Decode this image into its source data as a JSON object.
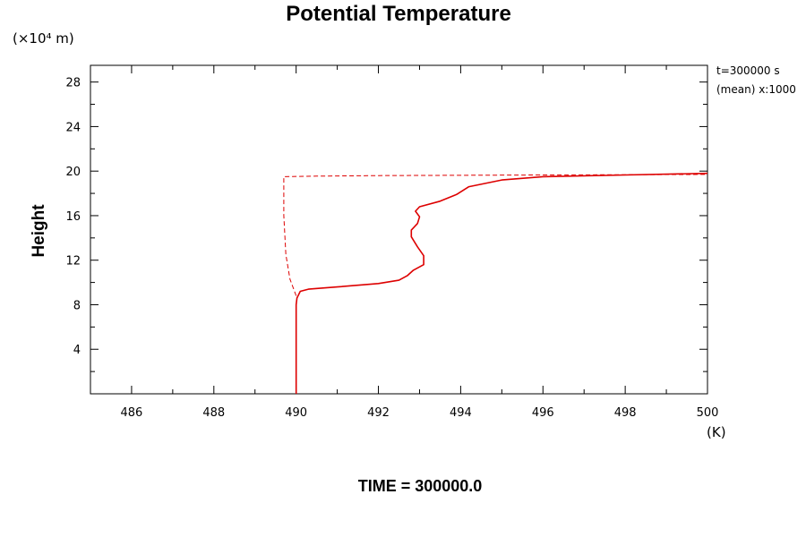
{
  "chart_data": {
    "type": "line",
    "title": "Potential Temperature",
    "ylabel": "Height",
    "y_unit": "(×10⁴ m)",
    "x_unit": "(K)",
    "annotation_time": "t=300000 s",
    "annotation_mean": "(mean) x:1000",
    "footer": "TIME = 300000.0",
    "xlim": [
      485,
      500
    ],
    "ylim": [
      0,
      29.5
    ],
    "x_ticks": [
      486,
      488,
      490,
      492,
      494,
      496,
      498,
      500
    ],
    "y_ticks": [
      4,
      8,
      12,
      16,
      20,
      24,
      28
    ],
    "grid": false,
    "colors": {
      "series": "#dd0000",
      "axis": "#000000"
    },
    "series": [
      {
        "style": "solid",
        "points": [
          [
            490.0,
            0
          ],
          [
            490.0,
            4
          ],
          [
            490.0,
            8
          ],
          [
            490.02,
            8.6
          ],
          [
            490.1,
            9.2
          ],
          [
            490.3,
            9.4
          ],
          [
            491.0,
            9.6
          ],
          [
            492.0,
            9.9
          ],
          [
            492.5,
            10.2
          ],
          [
            492.7,
            10.6
          ],
          [
            492.85,
            11.1
          ],
          [
            493.1,
            11.6
          ],
          [
            493.1,
            12.4
          ],
          [
            492.95,
            13.2
          ],
          [
            492.8,
            14.1
          ],
          [
            492.8,
            14.7
          ],
          [
            492.95,
            15.3
          ],
          [
            493.0,
            15.9
          ],
          [
            492.9,
            16.4
          ],
          [
            493.0,
            16.8
          ],
          [
            493.5,
            17.3
          ],
          [
            493.9,
            17.9
          ],
          [
            494.2,
            18.6
          ],
          [
            495.0,
            19.2
          ],
          [
            496.0,
            19.5
          ],
          [
            498.0,
            19.65
          ],
          [
            500.0,
            19.8
          ]
        ]
      },
      {
        "style": "dashed",
        "points": [
          [
            490.0,
            8.8
          ],
          [
            489.85,
            10.3
          ],
          [
            489.75,
            12.5
          ],
          [
            489.7,
            16.0
          ],
          [
            489.7,
            19.5
          ],
          [
            490.5,
            19.55
          ],
          [
            492.0,
            19.6
          ],
          [
            496.0,
            19.65
          ],
          [
            500.0,
            19.7
          ]
        ]
      }
    ]
  }
}
